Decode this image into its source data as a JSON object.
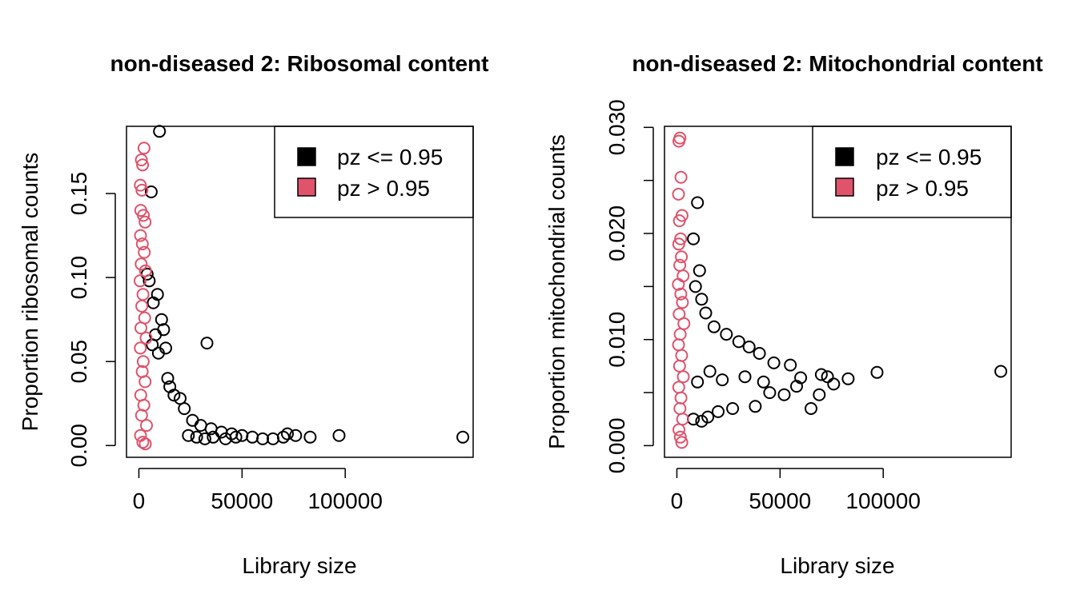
{
  "chart_data": [
    {
      "type": "scatter",
      "title": "non-diseased 2: Ribosomal content",
      "xlabel": "Library size",
      "ylabel": "Proportion ribosomal counts",
      "xlim": [
        -6000,
        162000
      ],
      "ylim": [
        -0.007,
        0.19
      ],
      "xticks": [
        0,
        50000,
        100000
      ],
      "xtick_labels": [
        "0",
        "50000",
        "100000"
      ],
      "yticks": [
        0.0,
        0.05,
        0.1,
        0.15
      ],
      "ytick_labels": [
        "0.00",
        "0.05",
        "0.10",
        "0.15"
      ],
      "legend": {
        "position": "top-right",
        "entries": [
          {
            "label": "pz <= 0.95",
            "color": "#000000"
          },
          {
            "label": "pz > 0.95",
            "color": "#DF536B"
          }
        ]
      },
      "series": [
        {
          "name": "pz <= 0.95",
          "color": "#000000",
          "points": [
            [
              10000,
              0.187
            ],
            [
              6000,
              0.151
            ],
            [
              33000,
              0.061
            ],
            [
              12000,
              0.069
            ],
            [
              9000,
              0.09
            ],
            [
              7000,
              0.085
            ],
            [
              5000,
              0.098
            ],
            [
              4000,
              0.102
            ],
            [
              11000,
              0.075
            ],
            [
              8000,
              0.066
            ],
            [
              13000,
              0.058
            ],
            [
              6500,
              0.06
            ],
            [
              9500,
              0.055
            ],
            [
              14000,
              0.04
            ],
            [
              15000,
              0.035
            ],
            [
              17000,
              0.03
            ],
            [
              20000,
              0.028
            ],
            [
              22000,
              0.022
            ],
            [
              26000,
              0.015
            ],
            [
              30000,
              0.012
            ],
            [
              35000,
              0.01
            ],
            [
              40000,
              0.008
            ],
            [
              45000,
              0.007
            ],
            [
              50000,
              0.006
            ],
            [
              55000,
              0.005
            ],
            [
              60000,
              0.004
            ],
            [
              65000,
              0.004
            ],
            [
              70000,
              0.005
            ],
            [
              72000,
              0.007
            ],
            [
              76000,
              0.006
            ],
            [
              83000,
              0.005
            ],
            [
              97000,
              0.006
            ],
            [
              157000,
              0.005
            ],
            [
              24000,
              0.006
            ],
            [
              28000,
              0.005
            ],
            [
              32000,
              0.004
            ],
            [
              36000,
              0.005
            ],
            [
              42000,
              0.004
            ],
            [
              47000,
              0.005
            ]
          ]
        },
        {
          "name": "pz > 0.95",
          "color": "#DF536B",
          "points": [
            [
              2500,
              0.177
            ],
            [
              1200,
              0.17
            ],
            [
              1800,
              0.167
            ],
            [
              700,
              0.155
            ],
            [
              1500,
              0.152
            ],
            [
              900,
              0.14
            ],
            [
              2200,
              0.137
            ],
            [
              3000,
              0.133
            ],
            [
              800,
              0.125
            ],
            [
              1700,
              0.12
            ],
            [
              2600,
              0.115
            ],
            [
              1100,
              0.108
            ],
            [
              3200,
              0.104
            ],
            [
              600,
              0.098
            ],
            [
              2000,
              0.09
            ],
            [
              1400,
              0.083
            ],
            [
              2800,
              0.076
            ],
            [
              1000,
              0.07
            ],
            [
              3500,
              0.064
            ],
            [
              700,
              0.058
            ],
            [
              2100,
              0.05
            ],
            [
              1600,
              0.044
            ],
            [
              3000,
              0.038
            ],
            [
              900,
              0.03
            ],
            [
              2400,
              0.024
            ],
            [
              1300,
              0.018
            ],
            [
              3700,
              0.012
            ],
            [
              800,
              0.006
            ],
            [
              1900,
              0.002
            ],
            [
              3100,
              0.001
            ]
          ]
        }
      ]
    },
    {
      "type": "scatter",
      "title": "non-diseased 2: Mitochondrial content",
      "xlabel": "Library size",
      "ylabel": "Proportion mitochondrial counts",
      "xlim": [
        -6000,
        162000
      ],
      "ylim": [
        -0.0011,
        0.0301
      ],
      "xticks": [
        0,
        50000,
        100000
      ],
      "xtick_labels": [
        "0",
        "50000",
        "100000"
      ],
      "yticks": [
        0.0,
        0.005,
        0.01,
        0.015,
        0.02,
        0.025,
        0.03
      ],
      "ytick_labels": [
        "0.000",
        "",
        "0.010",
        "",
        "0.020",
        "",
        "0.030"
      ],
      "legend": {
        "position": "top-right",
        "entries": [
          {
            "label": "pz <= 0.95",
            "color": "#000000"
          },
          {
            "label": "pz > 0.95",
            "color": "#DF536B"
          }
        ]
      },
      "series": [
        {
          "name": "pz <= 0.95",
          "color": "#000000",
          "points": [
            [
              10000,
              0.0229
            ],
            [
              8000,
              0.0195
            ],
            [
              11000,
              0.0165
            ],
            [
              9000,
              0.015
            ],
            [
              12000,
              0.0138
            ],
            [
              14000,
              0.0125
            ],
            [
              18000,
              0.0112
            ],
            [
              24000,
              0.0105
            ],
            [
              30000,
              0.0098
            ],
            [
              35000,
              0.0093
            ],
            [
              40000,
              0.0087
            ],
            [
              47000,
              0.0078
            ],
            [
              55000,
              0.0076
            ],
            [
              60000,
              0.0064
            ],
            [
              65000,
              0.0035
            ],
            [
              70000,
              0.0067
            ],
            [
              73000,
              0.0065
            ],
            [
              69000,
              0.0048
            ],
            [
              76000,
              0.0058
            ],
            [
              83000,
              0.0063
            ],
            [
              97000,
              0.0069
            ],
            [
              157000,
              0.007
            ],
            [
              45000,
              0.005
            ],
            [
              52000,
              0.0048
            ],
            [
              38000,
              0.0037
            ],
            [
              27000,
              0.0035
            ],
            [
              20000,
              0.0032
            ],
            [
              15000,
              0.0027
            ],
            [
              12000,
              0.0023
            ],
            [
              8000,
              0.0025
            ],
            [
              10000,
              0.006
            ],
            [
              16000,
              0.007
            ],
            [
              22000,
              0.0062
            ],
            [
              33000,
              0.0065
            ],
            [
              42000,
              0.006
            ],
            [
              58000,
              0.0056
            ]
          ]
        },
        {
          "name": "pz > 0.95",
          "color": "#DF536B",
          "points": [
            [
              1500,
              0.029
            ],
            [
              1000,
              0.0287
            ],
            [
              2000,
              0.0253
            ],
            [
              800,
              0.0237
            ],
            [
              2500,
              0.0217
            ],
            [
              1200,
              0.0212
            ],
            [
              1800,
              0.0195
            ],
            [
              900,
              0.019
            ],
            [
              2200,
              0.0178
            ],
            [
              1400,
              0.017
            ],
            [
              3000,
              0.016
            ],
            [
              700,
              0.0152
            ],
            [
              1900,
              0.0143
            ],
            [
              2700,
              0.0135
            ],
            [
              1100,
              0.0124
            ],
            [
              3400,
              0.0115
            ],
            [
              1600,
              0.0105
            ],
            [
              800,
              0.0095
            ],
            [
              2300,
              0.0085
            ],
            [
              1300,
              0.0075
            ],
            [
              3100,
              0.0065
            ],
            [
              900,
              0.0055
            ],
            [
              2000,
              0.0045
            ],
            [
              1500,
              0.0035
            ],
            [
              2800,
              0.0025
            ],
            [
              1000,
              0.0015
            ],
            [
              1700,
              0.0008
            ],
            [
              2400,
              0.0003
            ]
          ]
        }
      ]
    }
  ]
}
